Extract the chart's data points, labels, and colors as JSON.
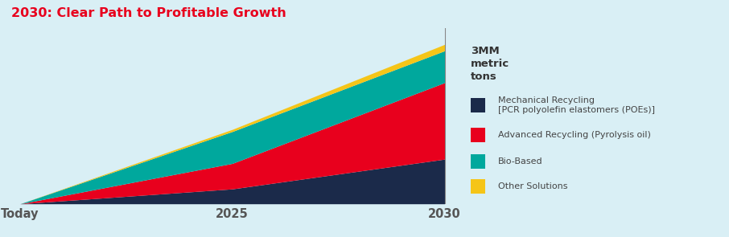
{
  "title": "2030: Clear Path to Profitable Growth",
  "title_color": "#e8001d",
  "title_fontsize": 11.5,
  "background_color": "#d9eff5",
  "x_labels": [
    "Today",
    "2025",
    "2030"
  ],
  "x_positions": [
    0,
    5,
    10
  ],
  "annotation_text": "3MM\nmetric\ntons",
  "layers": [
    {
      "label": "Mechanical Recycling\n[PCR polyolefin elastomers (POEs)]",
      "color": "#1b2a4a",
      "values": [
        0.0,
        0.28,
        0.84
      ]
    },
    {
      "label": "Advanced Recycling (Pyrolysis oil)",
      "color": "#e8001d",
      "values": [
        0.0,
        0.48,
        1.44
      ]
    },
    {
      "label": "Bio-Based",
      "color": "#00a89d",
      "values": [
        0.0,
        0.6,
        0.6
      ]
    },
    {
      "label": "Other Solutions",
      "color": "#f5c518",
      "values": [
        0.0,
        0.04,
        0.12
      ]
    }
  ],
  "total_at_2030": 3.0,
  "ylim": [
    0,
    3.3
  ],
  "xlim": [
    -0.3,
    10.3
  ],
  "legend_fontsize": 8.0,
  "annotation_fontsize": 9.5,
  "xtick_fontsize": 10.5
}
